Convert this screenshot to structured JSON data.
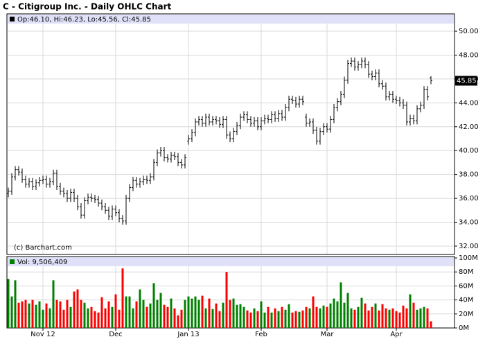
{
  "chart_data": {
    "type": "ohlc",
    "title": "C - Citigroup Inc. - Daily OHLC Chart",
    "legend": "Op:46.10, Hi:46.23, Lo:45.56, Cl:45.85",
    "watermark": "(c) Barchart.com",
    "categories": [
      null,
      null,
      null,
      null,
      null,
      null,
      null,
      null,
      null,
      null,
      "Nov 12",
      null,
      null,
      null,
      null,
      null,
      null,
      null,
      null,
      null,
      null,
      null,
      null,
      null,
      null,
      null,
      null,
      null,
      null,
      null,
      null,
      "Dec",
      null,
      null,
      null,
      null,
      null,
      null,
      null,
      null,
      null,
      null,
      null,
      null,
      null,
      null,
      null,
      null,
      null,
      null,
      null,
      null,
      "Jan 13",
      null,
      null,
      null,
      null,
      null,
      null,
      null,
      null,
      null,
      null,
      null,
      null,
      null,
      null,
      null,
      null,
      null,
      null,
      null,
      null,
      "Feb",
      null,
      null,
      null,
      null,
      null,
      null,
      null,
      null,
      null,
      null,
      null,
      null,
      null,
      null,
      null,
      null,
      null,
      null,
      "Mar",
      null,
      null,
      null,
      null,
      null,
      null,
      null,
      null,
      null,
      null,
      null,
      null,
      null,
      null,
      null,
      null,
      null,
      null,
      null,
      "Apr",
      null,
      null,
      null,
      null,
      null,
      null,
      null,
      null,
      null,
      null
    ],
    "open": [
      36.4,
      36.6,
      37.8,
      38.4,
      38.2,
      37.6,
      37.2,
      37.4,
      37.0,
      37.3,
      37.5,
      37.6,
      37.2,
      37.4,
      38.1,
      37.0,
      36.6,
      36.4,
      36.0,
      36.5,
      36.0,
      35.3,
      34.6,
      35.8,
      36.1,
      36.0,
      35.9,
      35.6,
      35.3,
      35.0,
      34.5,
      35.1,
      34.8,
      34.3,
      34.1,
      36.0,
      36.9,
      37.5,
      37.2,
      37.4,
      37.6,
      37.5,
      37.8,
      39.0,
      39.8,
      40.0,
      39.4,
      39.3,
      39.6,
      39.5,
      39.0,
      38.8,
      40.8,
      41.0,
      41.5,
      42.4,
      42.6,
      42.3,
      42.8,
      42.4,
      42.6,
      42.5,
      42.2,
      42.6,
      41.3,
      41.0,
      41.6,
      42.1,
      42.8,
      43.0,
      42.6,
      42.3,
      42.5,
      42.0,
      42.5,
      42.7,
      42.6,
      43.0,
      42.7,
      43.1,
      42.8,
      43.6,
      44.3,
      44.2,
      43.9,
      44.3,
      42.8,
      42.3,
      42.4,
      41.7,
      40.8,
      41.6,
      42.0,
      41.8,
      42.6,
      43.6,
      44.1,
      44.7,
      45.9,
      47.3,
      47.5,
      47.0,
      47.2,
      47.5,
      47.2,
      46.4,
      46.2,
      46.5,
      45.6,
      45.4,
      44.5,
      44.7,
      44.3,
      44.2,
      44.0,
      43.8,
      42.4,
      42.7,
      42.5,
      43.5,
      43.8,
      45.1,
      46.1
    ],
    "high": [
      36.9,
      38.1,
      38.7,
      38.7,
      38.5,
      37.9,
      37.7,
      37.7,
      37.6,
      37.8,
      37.9,
      37.9,
      37.7,
      38.4,
      38.4,
      37.3,
      36.9,
      36.7,
      36.8,
      36.8,
      36.3,
      35.6,
      36.1,
      36.4,
      36.4,
      36.3,
      36.2,
      35.9,
      35.6,
      35.3,
      35.4,
      35.4,
      35.1,
      34.6,
      36.3,
      37.2,
      37.8,
      37.8,
      37.7,
      37.9,
      37.9,
      38.1,
      39.3,
      40.1,
      40.3,
      40.3,
      39.7,
      39.9,
      39.9,
      39.8,
      39.3,
      39.7,
      41.3,
      41.8,
      42.7,
      42.9,
      42.9,
      43.1,
      43.1,
      42.9,
      42.9,
      42.8,
      42.9,
      42.9,
      41.6,
      41.9,
      42.4,
      43.1,
      43.3,
      43.3,
      42.9,
      42.8,
      42.8,
      42.8,
      43.0,
      43.0,
      43.3,
      43.3,
      43.4,
      43.4,
      43.9,
      44.6,
      44.6,
      44.5,
      44.6,
      44.6,
      43.1,
      42.7,
      42.7,
      42.0,
      41.9,
      42.3,
      42.3,
      42.9,
      43.9,
      44.4,
      45.0,
      46.2,
      47.6,
      47.8,
      47.8,
      47.5,
      47.8,
      47.8,
      47.5,
      46.7,
      46.8,
      46.8,
      45.9,
      45.7,
      45.0,
      45.0,
      44.6,
      44.5,
      44.3,
      44.1,
      43.0,
      43.0,
      43.8,
      44.1,
      45.4,
      45.4,
      46.23
    ],
    "low": [
      36.1,
      36.3,
      37.5,
      37.9,
      37.3,
      36.9,
      36.9,
      36.7,
      36.7,
      37.0,
      37.2,
      36.9,
      36.9,
      37.1,
      36.7,
      36.3,
      36.1,
      35.7,
      35.7,
      35.7,
      35.0,
      34.3,
      34.3,
      35.5,
      35.7,
      35.6,
      35.3,
      35.0,
      34.7,
      34.2,
      34.2,
      34.5,
      34.0,
      33.8,
      33.8,
      35.7,
      36.6,
      36.9,
      36.9,
      37.1,
      37.2,
      37.2,
      37.5,
      38.7,
      39.5,
      39.1,
      39.0,
      39.0,
      39.2,
      38.7,
      38.5,
      38.5,
      40.5,
      40.7,
      41.2,
      42.1,
      42.0,
      42.0,
      42.1,
      42.1,
      42.2,
      41.9,
      41.9,
      41.0,
      40.7,
      40.7,
      41.3,
      41.8,
      42.5,
      42.3,
      42.0,
      42.0,
      41.7,
      41.7,
      42.2,
      42.3,
      42.3,
      42.4,
      42.4,
      42.5,
      42.5,
      43.3,
      43.9,
      43.6,
      43.6,
      43.8,
      42.0,
      42.0,
      41.4,
      40.5,
      40.5,
      41.3,
      41.5,
      41.5,
      42.3,
      43.3,
      43.8,
      44.4,
      45.6,
      47.0,
      46.7,
      46.7,
      46.9,
      46.9,
      46.1,
      45.9,
      45.9,
      45.3,
      45.1,
      44.2,
      44.2,
      44.0,
      43.9,
      43.7,
      43.5,
      42.1,
      42.1,
      42.2,
      42.2,
      43.2,
      43.5,
      44.2,
      45.56
    ],
    "close": [
      36.6,
      37.8,
      38.4,
      38.2,
      37.6,
      37.2,
      37.4,
      37.0,
      37.3,
      37.5,
      37.6,
      37.2,
      37.4,
      38.1,
      37.0,
      36.6,
      36.4,
      36.0,
      36.5,
      36.0,
      35.3,
      34.6,
      35.8,
      36.1,
      36.0,
      35.9,
      35.6,
      35.3,
      35.0,
      34.5,
      35.1,
      34.8,
      34.3,
      34.1,
      36.0,
      36.9,
      37.5,
      37.2,
      37.4,
      37.6,
      37.5,
      37.8,
      39.0,
      39.8,
      40.0,
      39.4,
      39.3,
      39.6,
      39.5,
      39.0,
      38.8,
      39.4,
      41.0,
      41.5,
      42.4,
      42.6,
      42.3,
      42.8,
      42.4,
      42.6,
      42.5,
      42.2,
      42.6,
      41.3,
      41.0,
      41.6,
      42.1,
      42.8,
      43.0,
      42.6,
      42.3,
      42.5,
      42.0,
      42.5,
      42.7,
      42.6,
      43.0,
      42.7,
      43.1,
      42.8,
      43.6,
      44.3,
      44.2,
      43.9,
      44.3,
      44.1,
      42.3,
      42.4,
      41.7,
      40.8,
      41.6,
      42.0,
      41.8,
      42.6,
      43.6,
      44.1,
      44.7,
      45.9,
      47.3,
      47.5,
      47.0,
      47.2,
      47.5,
      47.2,
      46.4,
      46.2,
      46.5,
      45.6,
      45.4,
      44.5,
      44.7,
      44.3,
      44.2,
      44.0,
      43.8,
      42.4,
      42.7,
      42.5,
      43.5,
      43.8,
      45.1,
      44.5,
      45.85
    ],
    "ylim": [
      31.3,
      50.64
    ],
    "yticks": [
      {
        "value": 32,
        "label": "32.00"
      },
      {
        "value": 34,
        "label": "34.00"
      },
      {
        "value": 36,
        "label": "36.00"
      },
      {
        "value": 38,
        "label": "38.00"
      },
      {
        "value": 40,
        "label": "40.00"
      },
      {
        "value": 42,
        "label": "42.00"
      },
      {
        "value": 44,
        "label": "44.00"
      },
      {
        "value": 46,
        "label": "46.00"
      },
      {
        "value": 48,
        "label": "48.00"
      },
      {
        "value": 50,
        "label": "50.00"
      }
    ],
    "grid": true,
    "color": "#000000",
    "volume": {
      "legend": "Vol: 9,506,409",
      "values": [
        70,
        45,
        68,
        36,
        38,
        40,
        35,
        40,
        33,
        38,
        26,
        35,
        28,
        68,
        40,
        38,
        26,
        40,
        30,
        52,
        55,
        40,
        36,
        28,
        30,
        24,
        22,
        44,
        28,
        38,
        30,
        48,
        26,
        85,
        45,
        45,
        28,
        38,
        55,
        40,
        30,
        35,
        64,
        40,
        50,
        33,
        30,
        42,
        28,
        18,
        26,
        40,
        45,
        42,
        45,
        40,
        46,
        28,
        42,
        27,
        35,
        24,
        36,
        80,
        40,
        42,
        33,
        34,
        30,
        25,
        22,
        28,
        24,
        38,
        22,
        30,
        22,
        28,
        24,
        30,
        26,
        34,
        22,
        24,
        23,
        25,
        30,
        28,
        45,
        30,
        28,
        32,
        30,
        35,
        42,
        38,
        65,
        36,
        50,
        28,
        26,
        30,
        43,
        35,
        25,
        30,
        35,
        25,
        34,
        28,
        26,
        28,
        24,
        22,
        32,
        28,
        48,
        36,
        26,
        28,
        30,
        28,
        9.51
      ],
      "up_color": "#008000",
      "down_color": "#ff0000",
      "ylim": [
        0,
        100
      ],
      "yticks": [
        {
          "value": 0,
          "label": "0M"
        },
        {
          "value": 20,
          "label": "20M"
        },
        {
          "value": 40,
          "label": "40M"
        },
        {
          "value": 60,
          "label": "60M"
        },
        {
          "value": 80,
          "label": "80M"
        },
        {
          "value": 100,
          "label": "100M"
        }
      ]
    }
  }
}
